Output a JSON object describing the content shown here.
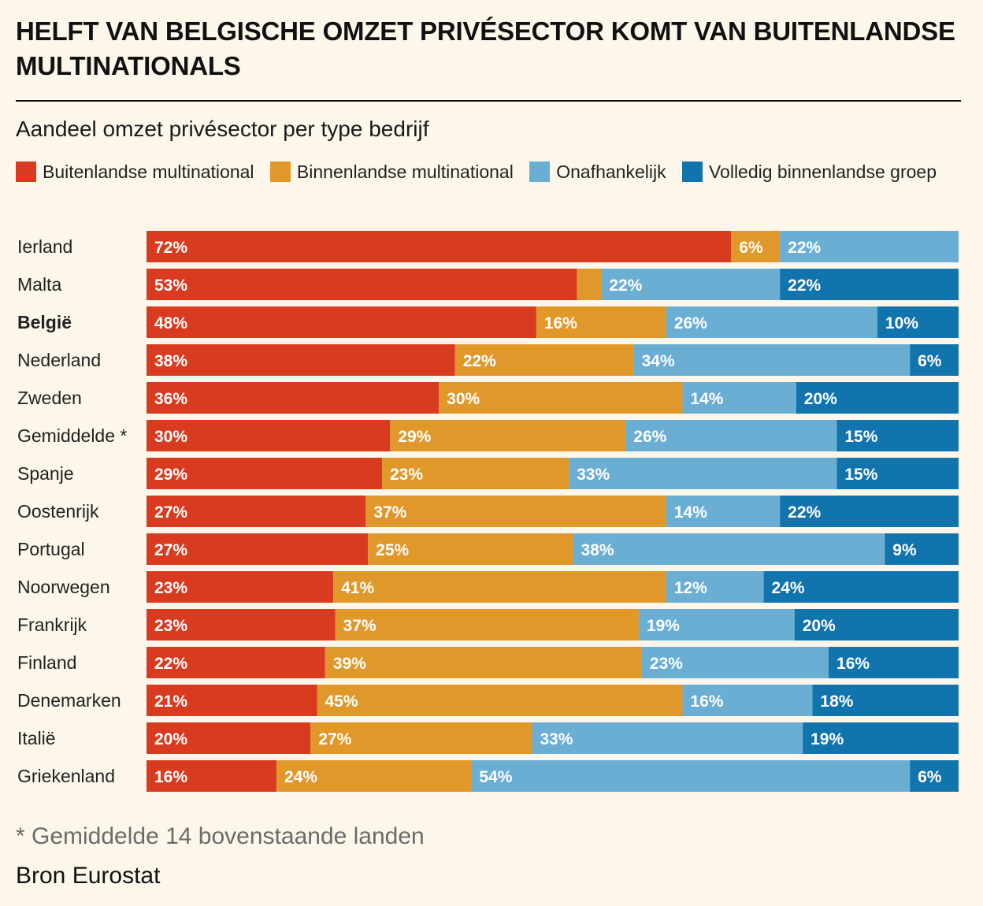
{
  "title": "HELFT VAN BELGISCHE OMZET PRIVÉSECTOR KOMT VAN BUITENLANDSE MULTINATIONALS",
  "footnote": "* Gemiddelde 14 bovenstaande landen",
  "source": "Bron Eurostat",
  "chart_data": {
    "type": "bar",
    "orientation": "horizontal",
    "stacked": true,
    "subtitle": "Aandeel omzet privésector per type bedrijf",
    "legend_position": "top",
    "highlight_category": "België",
    "categories": [
      "Ierland",
      "Malta",
      "België",
      "Nederland",
      "Zweden",
      "Gemiddelde *",
      "Spanje",
      "Oostenrijk",
      "Portugal",
      "Noorwegen",
      "Frankrijk",
      "Finland",
      "Denemarken",
      "Italië",
      "Griekenland"
    ],
    "series": [
      {
        "name": "Buitenlandse multinational",
        "color": "#d93b20",
        "values": [
          72,
          53,
          48,
          38,
          36,
          30,
          29,
          27,
          27,
          23,
          23,
          22,
          21,
          20,
          16
        ]
      },
      {
        "name": "Binnenlandse multinational",
        "color": "#e0982b",
        "values": [
          6,
          3,
          16,
          22,
          30,
          29,
          23,
          37,
          25,
          41,
          37,
          39,
          45,
          27,
          24
        ]
      },
      {
        "name": "Onafhankelijk",
        "color": "#6aaed4",
        "values": [
          22,
          22,
          26,
          34,
          14,
          26,
          33,
          14,
          38,
          12,
          19,
          23,
          16,
          33,
          54
        ]
      },
      {
        "name": "Volledig binnenlandse groep",
        "color": "#1274ad",
        "values": [
          0,
          22,
          10,
          6,
          20,
          15,
          15,
          22,
          9,
          24,
          20,
          16,
          18,
          19,
          6
        ]
      }
    ],
    "value_labels": [
      [
        "72%",
        "6%",
        "22%",
        ""
      ],
      [
        "53%",
        "",
        "22%",
        "22%"
      ],
      [
        "48%",
        "16%",
        "26%",
        "10%"
      ],
      [
        "38%",
        "22%",
        "34%",
        "6%"
      ],
      [
        "36%",
        "30%",
        "14%",
        "20%"
      ],
      [
        "30%",
        "29%",
        "26%",
        "15%"
      ],
      [
        "29%",
        "23%",
        "33%",
        "15%"
      ],
      [
        "27%",
        "37%",
        "14%",
        "22%"
      ],
      [
        "27%",
        "25%",
        "38%",
        "9%"
      ],
      [
        "23%",
        "41%",
        "12%",
        "24%"
      ],
      [
        "23%",
        "37%",
        "19%",
        "20%"
      ],
      [
        "22%",
        "39%",
        "23%",
        "16%"
      ],
      [
        "21%",
        "45%",
        "16%",
        "18%"
      ],
      [
        "20%",
        "27%",
        "33%",
        "19%"
      ],
      [
        "16%",
        "24%",
        "54%",
        "6%"
      ]
    ],
    "unit": "%"
  }
}
